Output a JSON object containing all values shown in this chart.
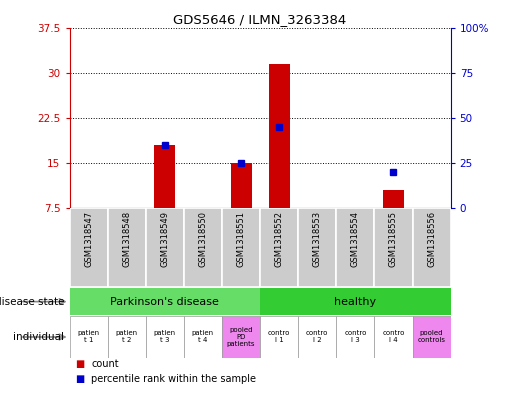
{
  "title": "GDS5646 / ILMN_3263384",
  "samples": [
    "GSM1318547",
    "GSM1318548",
    "GSM1318549",
    "GSM1318550",
    "GSM1318551",
    "GSM1318552",
    "GSM1318553",
    "GSM1318554",
    "GSM1318555",
    "GSM1318556"
  ],
  "count_values": [
    7.5,
    7.5,
    18.0,
    7.5,
    15.0,
    31.5,
    7.5,
    7.5,
    10.5,
    7.5
  ],
  "percentile_values": [
    null,
    null,
    35.0,
    null,
    25.0,
    45.0,
    null,
    null,
    20.0,
    null
  ],
  "ylim_left": [
    7.5,
    37.5
  ],
  "ylim_right": [
    0,
    100
  ],
  "yticks_left": [
    7.5,
    15.0,
    22.5,
    30.0,
    37.5
  ],
  "yticks_right": [
    0,
    25,
    50,
    75,
    100
  ],
  "ytick_labels_left": [
    "7.5",
    "15",
    "22.5",
    "30",
    "37.5"
  ],
  "ytick_labels_right": [
    "0",
    "25",
    "50",
    "75",
    "100%"
  ],
  "bar_color": "#cc0000",
  "dot_color": "#0000cc",
  "disease_groups": [
    {
      "label": "Parkinson's disease",
      "start": 0,
      "end": 4,
      "color": "#66dd66"
    },
    {
      "label": "healthy",
      "start": 5,
      "end": 9,
      "color": "#33cc33"
    }
  ],
  "individual_labels": [
    "patien\nt 1",
    "patien\nt 2",
    "patien\nt 3",
    "patien\nt 4",
    "pooled\nPD\npatients",
    "contro\nl 1",
    "contro\nl 2",
    "contro\nl 3",
    "contro\nl 4",
    "pooled\ncontrols"
  ],
  "individual_colors": [
    "#ffffff",
    "#ffffff",
    "#ffffff",
    "#ffffff",
    "#ee88ee",
    "#ffffff",
    "#ffffff",
    "#ffffff",
    "#ffffff",
    "#ee88ee"
  ],
  "disease_state_label": "disease state",
  "individual_label": "individual",
  "legend_count": "count",
  "legend_percentile": "percentile rank within the sample",
  "bar_color_label": "#cc0000",
  "dot_color_label": "#0000cc",
  "left_axis_color": "#cc0000",
  "right_axis_color": "#0000cc",
  "sample_box_color": "#cccccc",
  "plot_bg_color": "#ffffff"
}
